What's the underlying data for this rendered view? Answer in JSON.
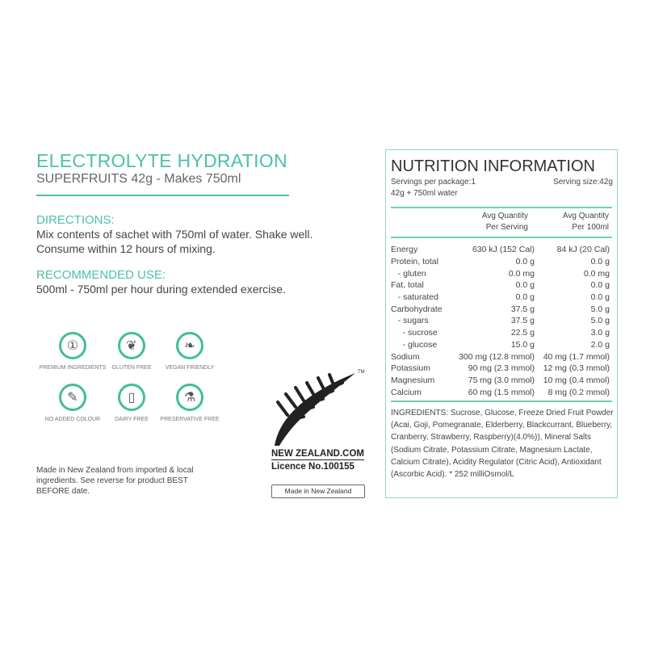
{
  "product": {
    "title": "ELECTROLYTE HYDRATION",
    "subtitle": "SUPERFRUITS 42g - Makes 750ml"
  },
  "directions": {
    "heading": "DIRECTIONS:",
    "lines": [
      "Mix contents of sachet with 750ml of water.  Shake well.",
      "Consume within 12 hours of mixing."
    ]
  },
  "recommended": {
    "heading": "RECOMMENDED USE:",
    "text": "500ml - 750ml per hour during extended exercise."
  },
  "badges": [
    {
      "label": "PREMIUM INGREDIENTS",
      "icon": "rosette-icon"
    },
    {
      "label": "GLUTEN FREE",
      "icon": "wheat-icon"
    },
    {
      "label": "VEGAN FRIENDLY",
      "icon": "leaf-icon"
    },
    {
      "label": "NO ADDED COLOUR",
      "icon": "dropper-icon"
    },
    {
      "label": "DAIRY FREE",
      "icon": "milk-carton-icon"
    },
    {
      "label": "PRESERVATIVE FREE",
      "icon": "flask-icon"
    }
  ],
  "note": "Made in New Zealand from imported & local ingredients. See reverse for product BEST BEFORE date.",
  "nz": {
    "brand": "NEW ZEALAND.COM",
    "licence": "Licence No.100155",
    "tm": "TM",
    "made": "Made in New Zealand"
  },
  "nutrition": {
    "title": "NUTRITION INFORMATION",
    "servings": "Servings per package:1",
    "serving_size": "Serving size:42g",
    "prep": "42g + 750ml water",
    "col1": [
      "Avg Quantity",
      "Per Serving"
    ],
    "col2": [
      "Avg Quantity",
      "Per 100ml"
    ],
    "rows": [
      [
        "Energy",
        "630 kJ (152 Cal)",
        "84 kJ (20 Cal)"
      ],
      [
        "Protein, total",
        "0.0 g",
        "0.0 g"
      ],
      [
        "   - gluten",
        "0.0 mg",
        "0.0 mg"
      ],
      [
        "Fat, total",
        "0.0 g",
        "0.0 g"
      ],
      [
        "   - saturated",
        "0.0 g",
        "0.0 g"
      ],
      [
        "Carbohydrate",
        "37.5 g",
        "5.0 g"
      ],
      [
        "   - sugars",
        "37.5 g",
        "5.0 g"
      ],
      [
        "     - sucrose",
        "22.5 g",
        "3.0 g"
      ],
      [
        "     - glucose",
        "15.0 g",
        "2.0 g"
      ],
      [
        "Sodium",
        "300 mg (12.8 mmol)",
        "40 mg (1.7 mmol)"
      ],
      [
        "Potassium",
        "90 mg (2.3 mmol)",
        "12 mg (0.3 mmol)"
      ],
      [
        "Magnesium",
        "75 mg (3.0 mmol)",
        "10 mg (0.4 mmol)"
      ],
      [
        "Calcium",
        "60 mg (1.5 mmol)",
        "8 mg (0.2 mmol)"
      ]
    ],
    "ingredients": "INGREDIENTS: Sucrose, Glucose, Freeze Dried Fruit Powder (Acai, Goji, Pomegranate, Elderberry, Blackcurrant, Blueberry, Cranberry, Strawberry, Raspberry)(4.0%)), Mineral Salts (Sodium Citrate, Potassium Citrate, Magnesium Lactate, Calcium Citrate), Acidity Regulator (Citric Acid), Antioxidant (Ascorbic Acid). * 252 milliOsmol/L"
  },
  "colors": {
    "accent": "#4cc1a8",
    "badge": "#3fbf99"
  }
}
